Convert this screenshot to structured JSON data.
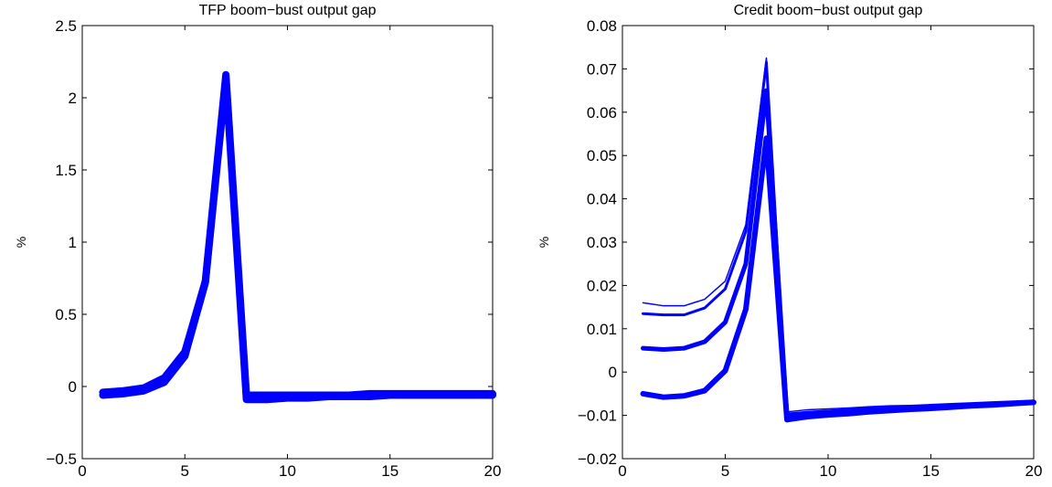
{
  "chart_data": [
    {
      "type": "line",
      "title": "TFP boom−bust output gap",
      "xlabel": "",
      "ylabel": "%",
      "xlim": [
        0,
        20
      ],
      "ylim": [
        -0.5,
        2.5
      ],
      "xticks": [
        0,
        5,
        10,
        15,
        20
      ],
      "xtick_labels": [
        "0",
        "5",
        "10",
        "15",
        "20"
      ],
      "yticks": [
        -0.5,
        0,
        0.5,
        1,
        1.5,
        2,
        2.5
      ],
      "ytick_labels": [
        "−0.5",
        "0",
        "0.5",
        "1",
        "1.5",
        "2",
        "2.5"
      ],
      "grid": false,
      "color": "#0000ff",
      "x": [
        1,
        2,
        3,
        4,
        5,
        6,
        7,
        8,
        9,
        10,
        11,
        12,
        13,
        14,
        15,
        16,
        17,
        18,
        19,
        20
      ],
      "series": [
        {
          "values": [
            -0.04,
            -0.03,
            -0.01,
            0.06,
            0.24,
            0.73,
            2.16,
            -0.06,
            -0.06,
            -0.06,
            -0.06,
            -0.06,
            -0.06,
            -0.05,
            -0.05,
            -0.05,
            -0.05,
            -0.05,
            -0.05,
            -0.05
          ],
          "width": 8
        },
        {
          "values": [
            -0.06,
            -0.05,
            -0.03,
            0.03,
            0.21,
            0.72,
            2.13,
            -0.09,
            -0.09,
            -0.08,
            -0.08,
            -0.07,
            -0.07,
            -0.07,
            -0.06,
            -0.06,
            -0.06,
            -0.06,
            -0.06,
            -0.06
          ],
          "width": 8
        }
      ]
    },
    {
      "type": "line",
      "title": "Credit boom−bust output gap",
      "xlabel": "",
      "ylabel": "%",
      "xlim": [
        0,
        20
      ],
      "ylim": [
        -0.02,
        0.08
      ],
      "xticks": [
        0,
        5,
        10,
        15,
        20
      ],
      "xtick_labels": [
        "0",
        "5",
        "10",
        "15",
        "20"
      ],
      "yticks": [
        -0.02,
        -0.01,
        0,
        0.01,
        0.02,
        0.03,
        0.04,
        0.05,
        0.06,
        0.07,
        0.08
      ],
      "ytick_labels": [
        "−0.02",
        "−0.01",
        "0",
        "0.01",
        "0.02",
        "0.03",
        "0.04",
        "0.05",
        "0.06",
        "0.07",
        "0.08"
      ],
      "grid": false,
      "color": "#0000ff",
      "x": [
        1,
        2,
        3,
        4,
        5,
        6,
        7,
        8,
        9,
        10,
        11,
        12,
        13,
        14,
        15,
        16,
        17,
        18,
        19,
        20
      ],
      "series": [
        {
          "values": [
            0.016,
            0.0153,
            0.0153,
            0.0168,
            0.021,
            0.034,
            0.0725,
            -0.0092,
            -0.0087,
            -0.0085,
            -0.0083,
            -0.008,
            -0.0078,
            -0.0077,
            -0.0075,
            -0.0073,
            -0.0071,
            -0.0069,
            -0.0067,
            -0.0065
          ],
          "width": 1.5
        },
        {
          "values": [
            0.0135,
            0.0132,
            0.0132,
            0.0148,
            0.0192,
            0.0325,
            0.0715,
            -0.0097,
            -0.0093,
            -0.009,
            -0.0087,
            -0.0084,
            -0.0082,
            -0.008,
            -0.0078,
            -0.0076,
            -0.0074,
            -0.0072,
            -0.007,
            -0.0067
          ],
          "width": 3
        },
        {
          "values": [
            0.0055,
            0.0052,
            0.0055,
            0.007,
            0.0115,
            0.025,
            0.065,
            -0.0103,
            -0.0098,
            -0.0095,
            -0.0092,
            -0.0089,
            -0.0087,
            -0.0085,
            -0.0082,
            -0.008,
            -0.0077,
            -0.0075,
            -0.0072,
            -0.0069
          ],
          "width": 5
        },
        {
          "values": [
            -0.005,
            -0.0058,
            -0.0055,
            -0.0043,
            0.0003,
            0.0145,
            0.054,
            -0.011,
            -0.0103,
            -0.0099,
            -0.0096,
            -0.0092,
            -0.0089,
            -0.0086,
            -0.0084,
            -0.0081,
            -0.0078,
            -0.0076,
            -0.0073,
            -0.007
          ],
          "width": 6
        }
      ]
    }
  ]
}
